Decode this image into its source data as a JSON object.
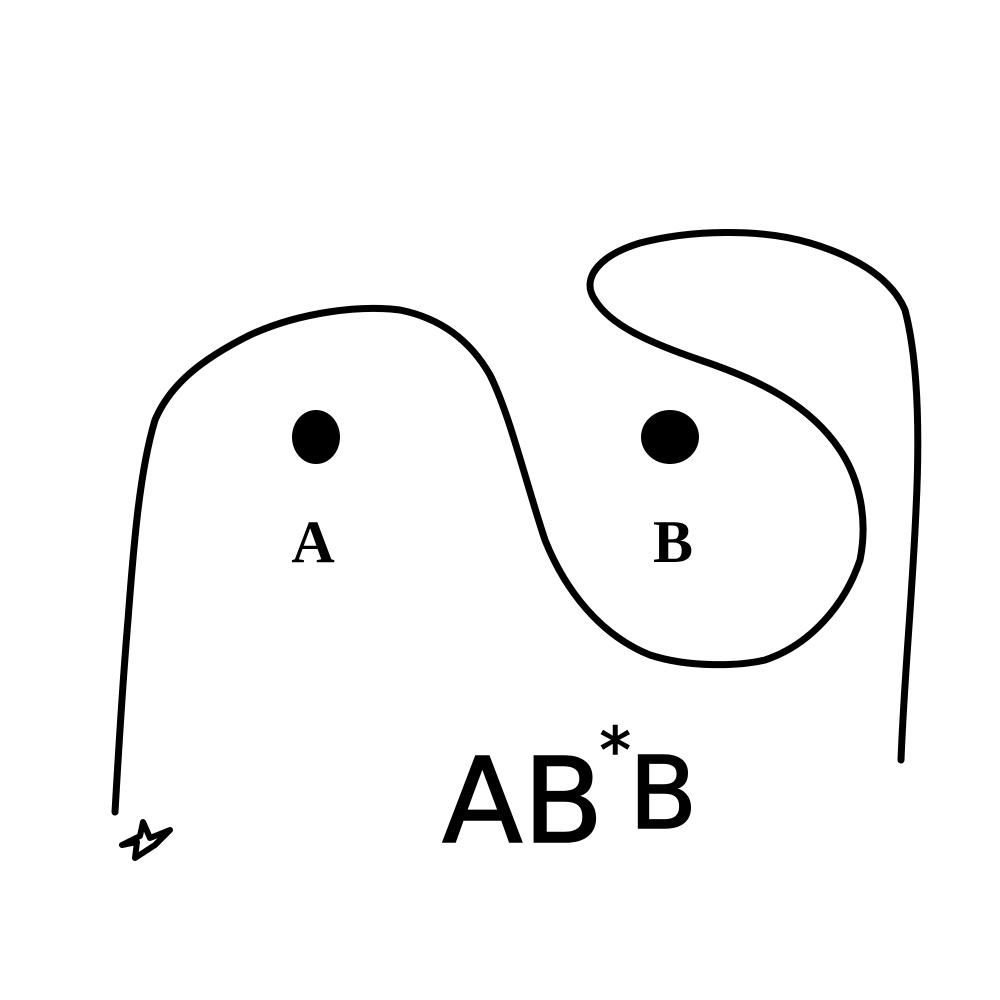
{
  "points": [
    {
      "label": "A"
    },
    {
      "label": "B"
    }
  ],
  "annotation": {
    "base": "AB",
    "superscript": "*",
    "tail": "B"
  }
}
